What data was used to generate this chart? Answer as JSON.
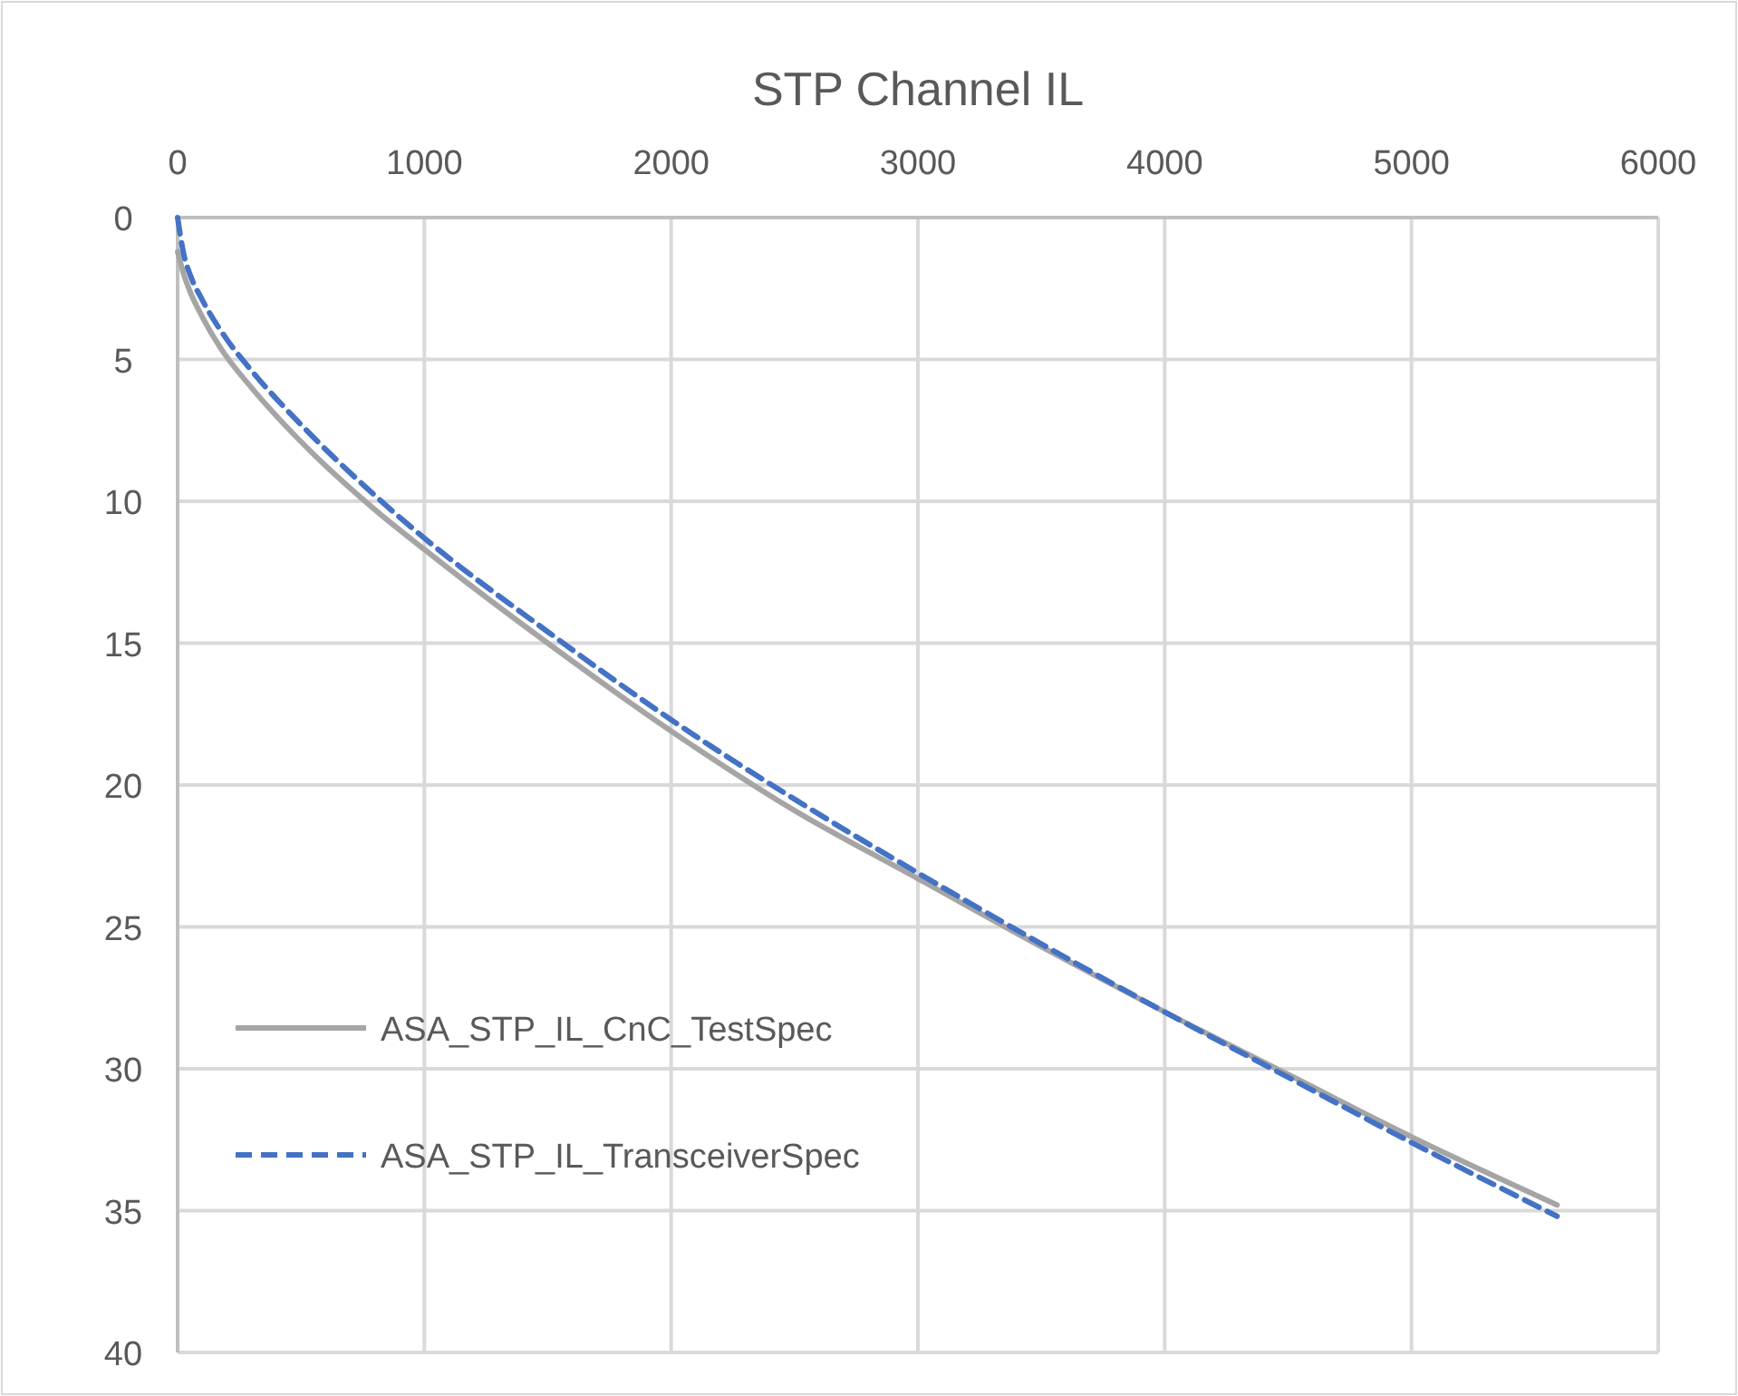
{
  "chart_data": {
    "type": "line",
    "title": "STP Channel IL",
    "xlim": [
      0,
      6000
    ],
    "xticks": [
      0,
      1000,
      2000,
      3000,
      4000,
      5000,
      6000
    ],
    "ylim": [
      40,
      0
    ],
    "yticks": [
      0,
      5,
      10,
      15,
      20,
      25,
      30,
      35,
      40
    ],
    "grid": true,
    "legend": "bottom left",
    "marker": "none",
    "series": [
      {
        "name": "ASA_STP_IL_CnC_TestSpec",
        "color": "#a5a5a5",
        "line_style": "solid",
        "x": [
          0,
          25,
          50,
          100,
          174,
          300,
          500,
          800,
          1000,
          1500,
          2000,
          2500,
          3000,
          3500,
          4000,
          4500,
          5000,
          5590
        ],
        "values": [
          1.2,
          2.0,
          2.6,
          3.5,
          4.6,
          6.0,
          7.9,
          10.3,
          11.7,
          15.0,
          18.1,
          20.9,
          23.3,
          25.7,
          28,
          30.2,
          32.4,
          34.8
        ]
      },
      {
        "name": "ASA_STP_IL_TransceiverSpec",
        "color": "#4472c4",
        "line_style": "dashed",
        "x": [
          0,
          25,
          50,
          100,
          200,
          300,
          500,
          800,
          1000,
          1500,
          2000,
          2500,
          3000,
          3500,
          4000,
          4500,
          5000,
          5590
        ],
        "values": [
          0,
          1.3,
          2.0,
          2.9,
          4.3,
          5.4,
          7.3,
          9.8,
          11.3,
          14.6,
          17.7,
          20.5,
          23.1,
          25.6,
          28,
          30.3,
          32.6,
          35.2
        ]
      }
    ]
  }
}
